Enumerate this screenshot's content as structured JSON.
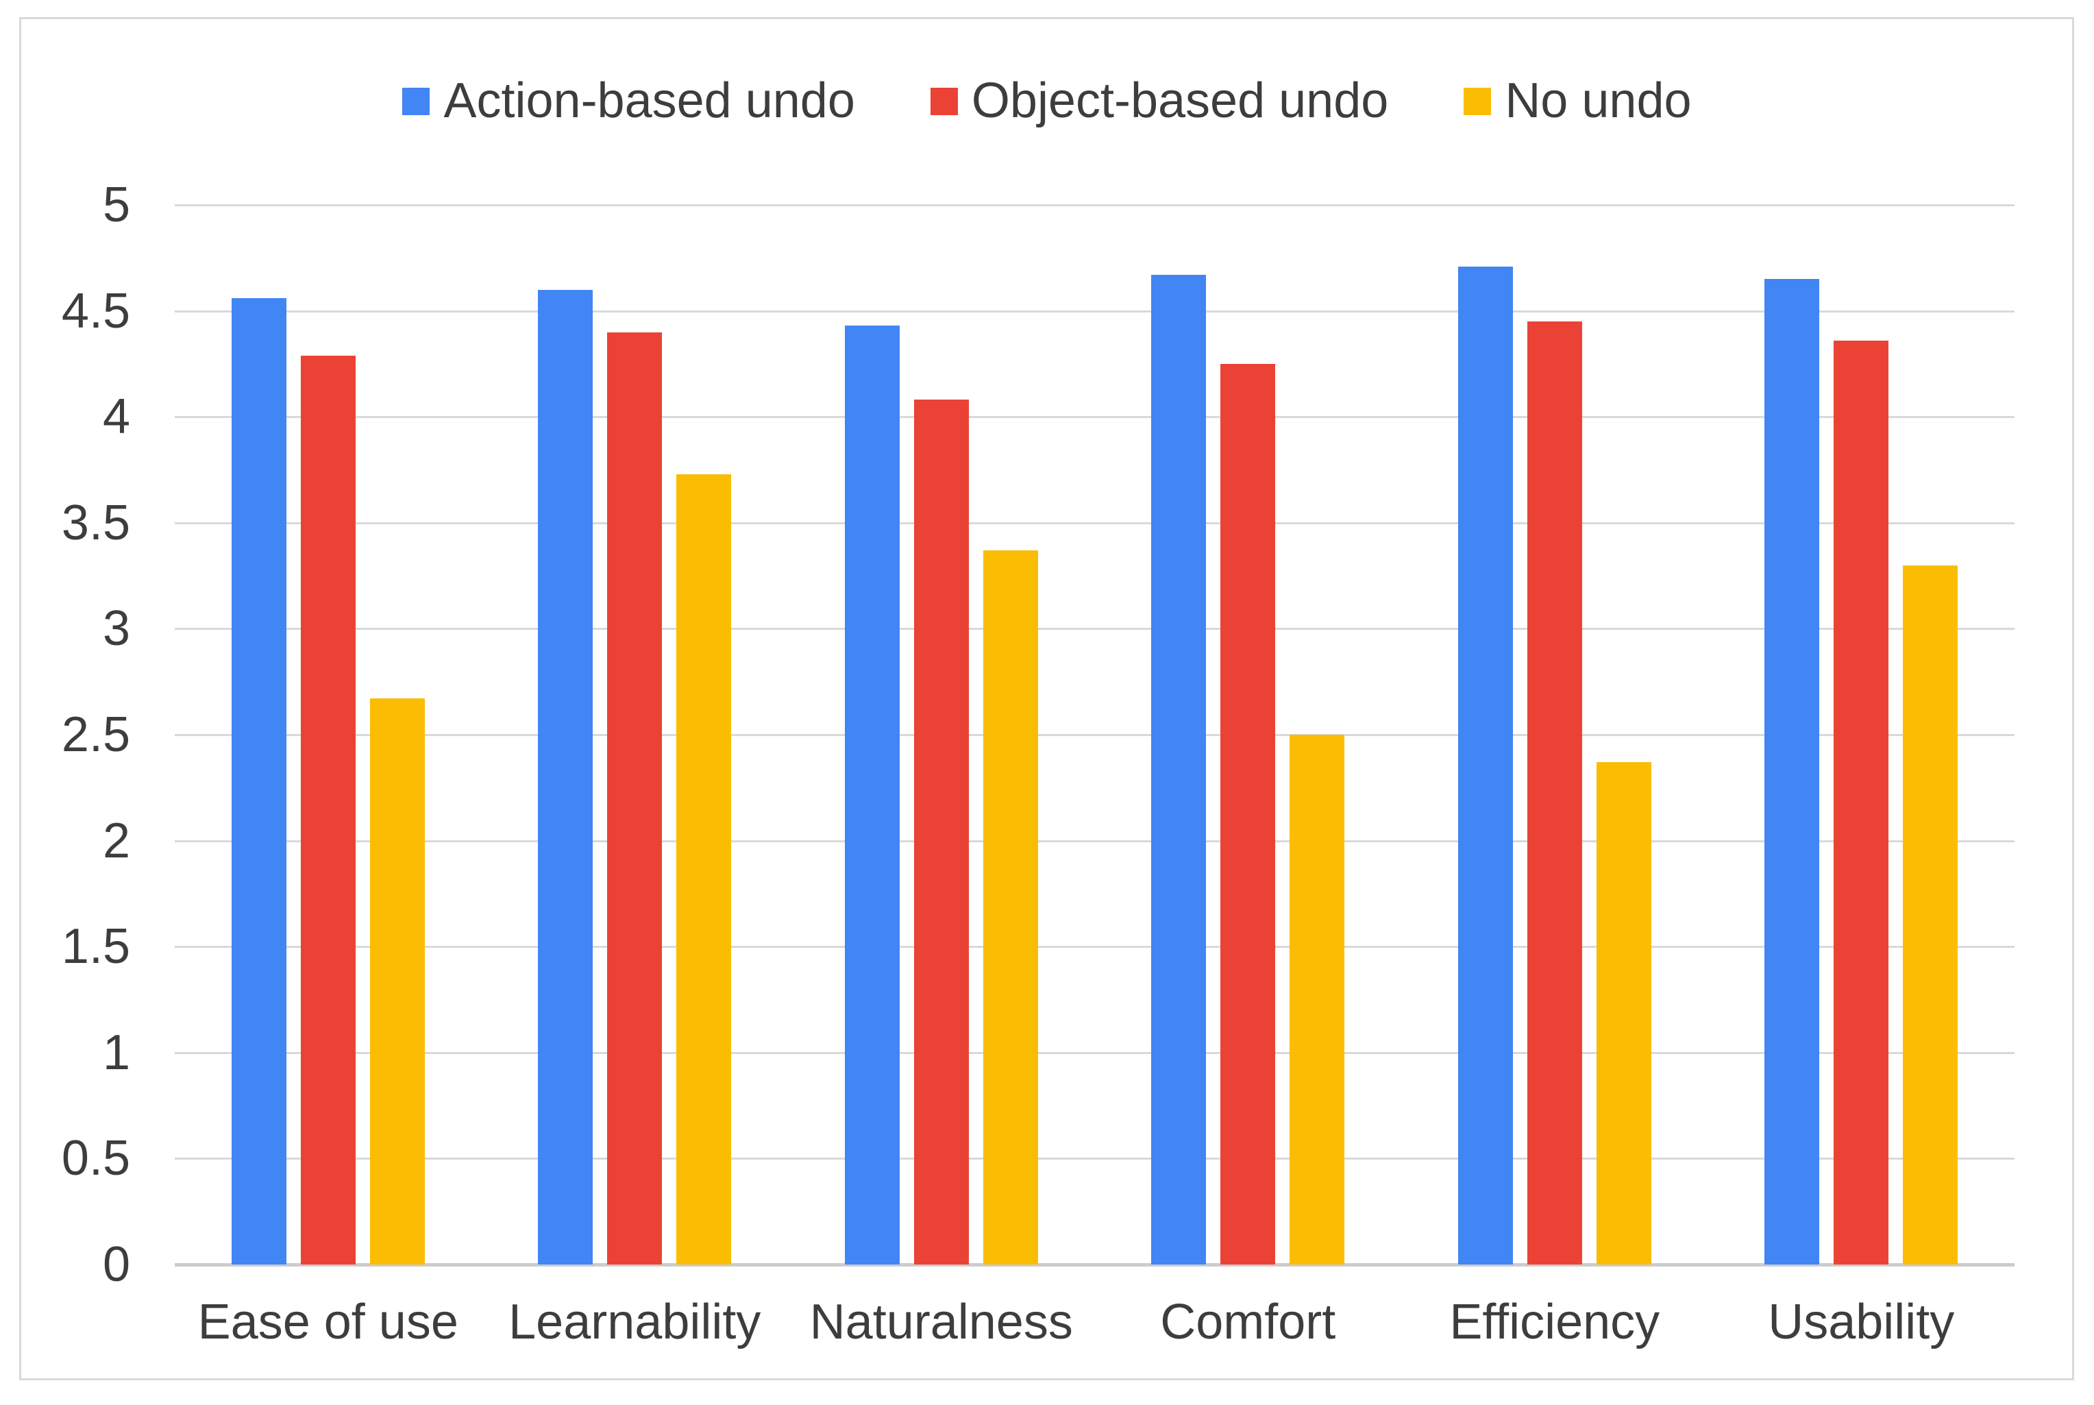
{
  "chart_data": {
    "type": "bar",
    "title": "",
    "categories": [
      "Ease of use",
      "Learnability",
      "Naturalness",
      "Comfort",
      "Efficiency",
      "Usability"
    ],
    "series": [
      {
        "name": "Action-based undo",
        "color": "#4285F4",
        "values": [
          4.56,
          4.6,
          4.43,
          4.67,
          4.71,
          4.65
        ]
      },
      {
        "name": "Object-based undo",
        "color": "#EA4335",
        "values": [
          4.29,
          4.4,
          4.08,
          4.25,
          4.45,
          4.36
        ]
      },
      {
        "name": "No undo",
        "color": "#FBBC04",
        "values": [
          2.67,
          3.73,
          3.37,
          2.5,
          2.37,
          3.3
        ]
      }
    ],
    "ylim": [
      0,
      5
    ],
    "ytick_step": 0.5,
    "ytick_labels": [
      "0",
      "0.5",
      "1",
      "1.5",
      "2",
      "2.5",
      "3",
      "3.5",
      "4",
      "4.5",
      "5"
    ],
    "grid": true,
    "legend_position": "top",
    "colors": {
      "gridline": "#d9d9d9",
      "baseline": "#cccccc",
      "frame_border": "#d9d9d9",
      "text": "#3d3d3d",
      "background": "#ffffff"
    }
  }
}
